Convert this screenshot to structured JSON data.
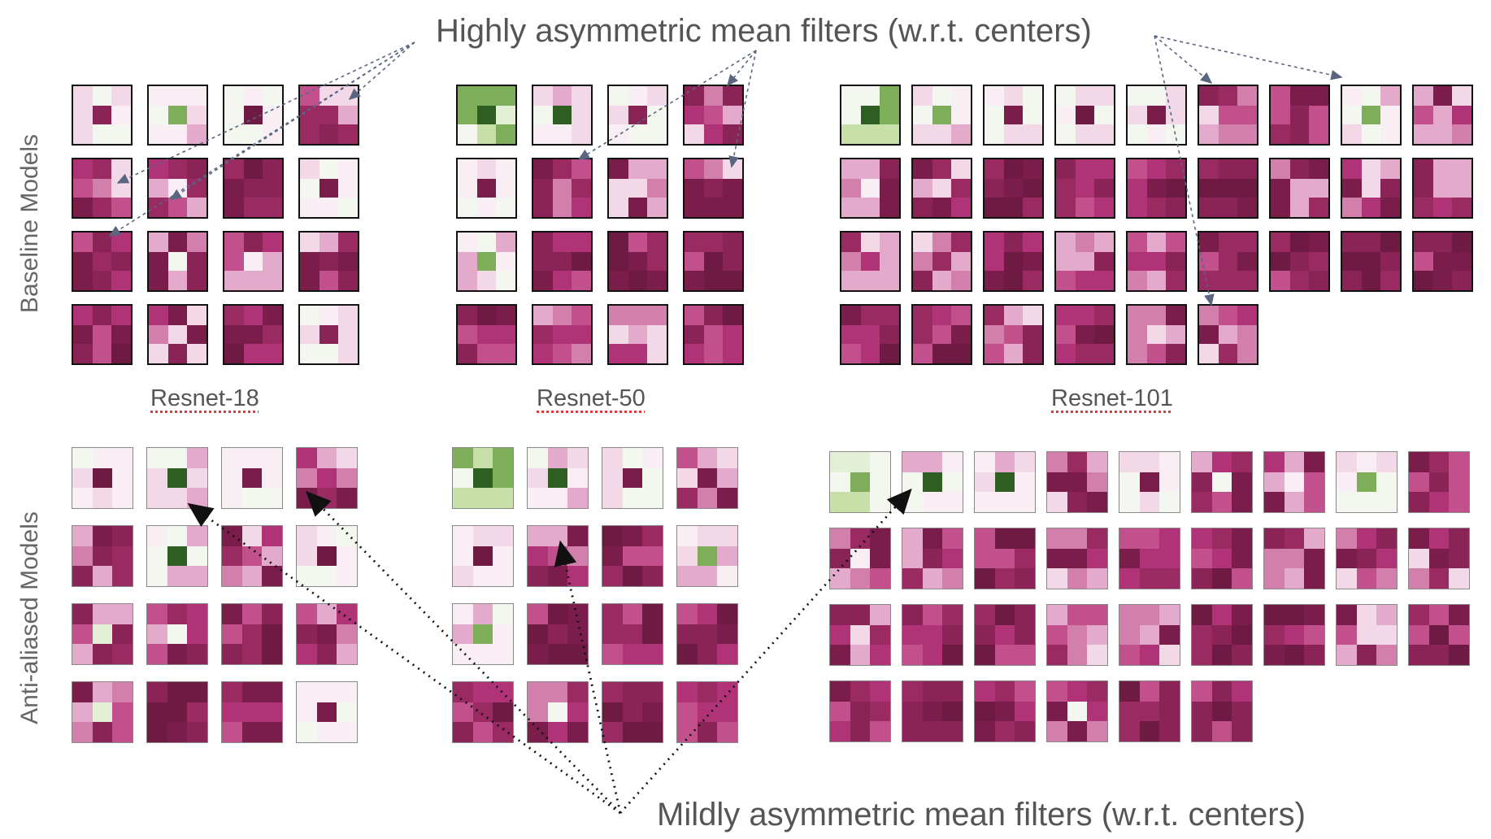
{
  "annotations": {
    "top": "Highly asymmetric mean filters (w.r.t. centers)",
    "bottom": "Mildly asymmetric mean filters (w.r.t. centers)"
  },
  "row_labels": {
    "baseline": "Baseline Models",
    "antialiased": "Anti-aliased Models"
  },
  "models": [
    {
      "name": "Resnet-18"
    },
    {
      "name": "Resnet-50"
    },
    {
      "name": "Resnet-101"
    }
  ],
  "colors": {
    "dark_magenta": "#7a1d4a",
    "magenta": "#b03277",
    "light_pink": "#f3d8e8",
    "near_white": "#f4f7ef",
    "light_green": "#c6e0a8",
    "dark_green": "#2e5e22",
    "arrow_top": "#5a6680",
    "arrow_bottom": "#111111"
  },
  "filter_grids": {
    "baseline": {
      "Resnet-18": {
        "filter_count": 16,
        "highlighted_filters": [
          5,
          9,
          4
        ]
      },
      "Resnet-50": {
        "filter_count": 16,
        "highlighted_filters": [
          6,
          8
        ]
      },
      "Resnet-101": {
        "filter_count": 33,
        "highlighted_filters": [
          6,
          7,
          24
        ]
      }
    },
    "antialiased": {
      "Resnet-18": {
        "filter_count": 16,
        "highlighted_filters": [
          2,
          4
        ]
      },
      "Resnet-50": {
        "filter_count": 16,
        "highlighted_filters": [
          6
        ]
      },
      "Resnet-101": {
        "filter_count": 33,
        "highlighted_filters": [
          2
        ]
      }
    }
  }
}
